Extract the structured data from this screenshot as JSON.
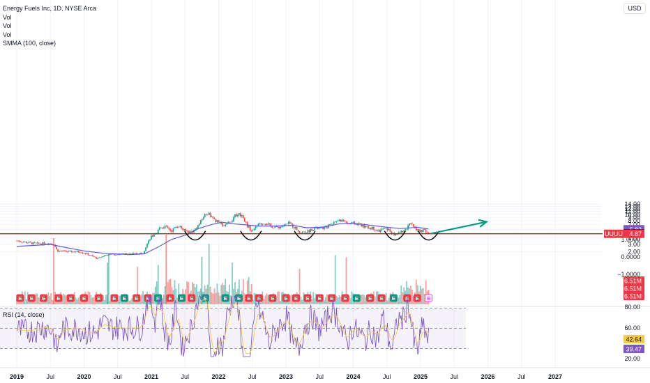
{
  "legend": {
    "title": "Energy Fuels Inc, 1D, NYSE Arca",
    "vol1": "Vol",
    "vol2": "Vol",
    "vol3": "Vol",
    "smma": "SMMA (100, close)"
  },
  "currency": "USD",
  "rsi_label": "RSI (14, close)",
  "colors": {
    "up": "#26a69a",
    "down": "#ef5350",
    "smma": "#5b5bd6",
    "rsi": "#7e57c2",
    "arrow": "#089981",
    "support": "#b71c1c",
    "earnings": "#f23645",
    "dividend": "#089981"
  },
  "chart_data": {
    "type": "candlestick",
    "symbol": "UUUU",
    "price_axis_ticks": [
      "14.00",
      "13.00",
      "12.00",
      "11.00",
      "10.00",
      "9.00",
      "8.00",
      "7.00",
      "6.00",
      "5.00",
      "4.00",
      "3.00",
      "2.00"
    ],
    "volume_axis_ticks": [
      "1.0000",
      "0.0000",
      "−1.0000"
    ],
    "rsi_axis_ticks": [
      "80.00",
      "60.00",
      "20.00"
    ],
    "time_axis_labels": [
      "2019",
      "Jul",
      "2020",
      "Jul",
      "2021",
      "Jul",
      "2022",
      "Jul",
      "2023",
      "Jul",
      "2024",
      "Jul",
      "2025",
      "Jul",
      "2026",
      "Jul",
      "2027"
    ],
    "price_path": [
      {
        "t": 2019.0,
        "p": 3.6
      },
      {
        "t": 2019.15,
        "p": 3.3
      },
      {
        "t": 2019.3,
        "p": 3.1
      },
      {
        "t": 2019.45,
        "p": 3.2
      },
      {
        "t": 2019.55,
        "p": 3.1
      },
      {
        "t": 2019.6,
        "p": 2.1
      },
      {
        "t": 2019.8,
        "p": 2.0
      },
      {
        "t": 2019.95,
        "p": 2.0
      },
      {
        "t": 2020.05,
        "p": 1.7
      },
      {
        "t": 2020.2,
        "p": 1.2
      },
      {
        "t": 2020.32,
        "p": 1.6
      },
      {
        "t": 2020.5,
        "p": 1.7
      },
      {
        "t": 2020.7,
        "p": 1.75
      },
      {
        "t": 2020.88,
        "p": 1.85
      },
      {
        "t": 2020.93,
        "p": 2.9
      },
      {
        "t": 2021.0,
        "p": 4.3
      },
      {
        "t": 2021.08,
        "p": 4.7
      },
      {
        "t": 2021.12,
        "p": 6.3
      },
      {
        "t": 2021.2,
        "p": 6.4
      },
      {
        "t": 2021.3,
        "p": 5.5
      },
      {
        "t": 2021.4,
        "p": 6.8
      },
      {
        "t": 2021.48,
        "p": 5.6
      },
      {
        "t": 2021.55,
        "p": 5.3
      },
      {
        "t": 2021.62,
        "p": 5.4
      },
      {
        "t": 2021.72,
        "p": 7.2
      },
      {
        "t": 2021.78,
        "p": 9.5
      },
      {
        "t": 2021.85,
        "p": 10.7
      },
      {
        "t": 2021.92,
        "p": 8.2
      },
      {
        "t": 2022.0,
        "p": 7.6
      },
      {
        "t": 2022.08,
        "p": 6.5
      },
      {
        "t": 2022.18,
        "p": 7.8
      },
      {
        "t": 2022.28,
        "p": 10.3
      },
      {
        "t": 2022.35,
        "p": 9.6
      },
      {
        "t": 2022.42,
        "p": 6.8
      },
      {
        "t": 2022.5,
        "p": 5.3
      },
      {
        "t": 2022.58,
        "p": 6.8
      },
      {
        "t": 2022.68,
        "p": 7.5
      },
      {
        "t": 2022.78,
        "p": 6.5
      },
      {
        "t": 2022.88,
        "p": 6.3
      },
      {
        "t": 2022.95,
        "p": 6.6
      },
      {
        "t": 2023.05,
        "p": 7.3
      },
      {
        "t": 2023.12,
        "p": 6.4
      },
      {
        "t": 2023.22,
        "p": 5.1
      },
      {
        "t": 2023.32,
        "p": 5.3
      },
      {
        "t": 2023.42,
        "p": 6.1
      },
      {
        "t": 2023.5,
        "p": 6.0
      },
      {
        "t": 2023.6,
        "p": 6.3
      },
      {
        "t": 2023.7,
        "p": 7.5
      },
      {
        "t": 2023.78,
        "p": 8.2
      },
      {
        "t": 2023.85,
        "p": 8.0
      },
      {
        "t": 2023.93,
        "p": 7.2
      },
      {
        "t": 2024.0,
        "p": 7.3
      },
      {
        "t": 2024.1,
        "p": 7.0
      },
      {
        "t": 2024.2,
        "p": 6.2
      },
      {
        "t": 2024.3,
        "p": 6.1
      },
      {
        "t": 2024.38,
        "p": 5.4
      },
      {
        "t": 2024.45,
        "p": 6.0
      },
      {
        "t": 2024.52,
        "p": 5.8
      },
      {
        "t": 2024.6,
        "p": 4.6
      },
      {
        "t": 2024.68,
        "p": 5.1
      },
      {
        "t": 2024.76,
        "p": 5.6
      },
      {
        "t": 2024.84,
        "p": 7.0
      },
      {
        "t": 2024.9,
        "p": 6.5
      },
      {
        "t": 2024.98,
        "p": 5.3
      },
      {
        "t": 2025.05,
        "p": 5.6
      },
      {
        "t": 2025.12,
        "p": 4.93
      }
    ],
    "smma_path": [
      {
        "t": 2019.0,
        "p": 2.7
      },
      {
        "t": 2019.5,
        "p": 3.0
      },
      {
        "t": 2019.7,
        "p": 2.6
      },
      {
        "t": 2020.0,
        "p": 2.1
      },
      {
        "t": 2020.3,
        "p": 1.8
      },
      {
        "t": 2020.7,
        "p": 1.65
      },
      {
        "t": 2020.9,
        "p": 1.75
      },
      {
        "t": 2021.1,
        "p": 2.6
      },
      {
        "t": 2021.3,
        "p": 3.8
      },
      {
        "t": 2021.55,
        "p": 4.8
      },
      {
        "t": 2021.7,
        "p": 6.0
      },
      {
        "t": 2021.9,
        "p": 7.0
      },
      {
        "t": 2022.05,
        "p": 7.6
      },
      {
        "t": 2022.2,
        "p": 7.2
      },
      {
        "t": 2022.4,
        "p": 6.9
      },
      {
        "t": 2022.6,
        "p": 6.6
      },
      {
        "t": 2022.85,
        "p": 6.6
      },
      {
        "t": 2023.1,
        "p": 6.8
      },
      {
        "t": 2023.3,
        "p": 6.2
      },
      {
        "t": 2023.55,
        "p": 6.3
      },
      {
        "t": 2023.8,
        "p": 7.2
      },
      {
        "t": 2024.0,
        "p": 7.3
      },
      {
        "t": 2024.2,
        "p": 6.9
      },
      {
        "t": 2024.5,
        "p": 6.3
      },
      {
        "t": 2024.7,
        "p": 6.0
      },
      {
        "t": 2024.95,
        "p": 6.3
      },
      {
        "t": 2025.12,
        "p": 5.9
      }
    ],
    "support_level": 4.87,
    "bottoms": [
      {
        "t": 2021.65,
        "p": 4.6
      },
      {
        "t": 2022.48,
        "p": 4.6
      },
      {
        "t": 2023.28,
        "p": 4.6
      },
      {
        "t": 2024.62,
        "p": 4.6
      },
      {
        "t": 2025.12,
        "p": 4.6
      }
    ],
    "projection": {
      "from": {
        "t": 2025.15,
        "p": 4.9
      },
      "to": {
        "t": 2025.98,
        "p": 7.7
      }
    },
    "price_labels": [
      {
        "label": "",
        "value": "5.82",
        "bg": "#7e57c2",
        "p": 5.82
      },
      {
        "label": "",
        "value": "4.93",
        "bg": "#000000",
        "p": 4.93
      },
      {
        "label": "UUUU",
        "value": "4.87",
        "bg": "#f23645",
        "p": 4.87
      }
    ],
    "volume_labels": [
      "6.51M",
      "6.51M",
      "6.51M"
    ],
    "rsi_labels": [
      {
        "value": "42.64",
        "bg": "#f7c948"
      },
      {
        "value": "39.47",
        "bg": "#7e57c2"
      }
    ],
    "rsi_levels": [
      70,
      50,
      30
    ],
    "earnings_markers": {
      "symbol": "E",
      "t": [
        2019.05,
        2019.22,
        2019.4,
        2019.62,
        2019.8,
        2020.0,
        2020.22,
        2020.45,
        2020.6,
        2020.78,
        2020.95,
        2021.1,
        2021.28,
        2021.45,
        2021.6,
        2021.8,
        2022.1,
        2022.3,
        2022.45,
        2022.6,
        2022.8,
        2023.0,
        2023.15,
        2023.32,
        2023.5,
        2023.68,
        2023.88,
        2024.05,
        2024.25,
        2024.42,
        2024.6,
        2024.8,
        2024.95,
        2025.12
      ],
      "green_index": [
        8,
        11,
        13,
        15,
        16,
        17,
        27,
        30
      ],
      "upcoming_index": 33
    }
  }
}
